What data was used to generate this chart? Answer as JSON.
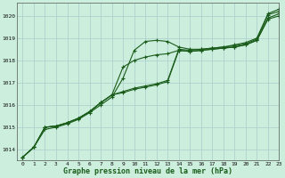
{
  "title": "Graphe pression niveau de la mer (hPa)",
  "bg_color": "#cceedd",
  "grid_color": "#aacccc",
  "line_color": "#1a5c1a",
  "xlim": [
    -0.5,
    23
  ],
  "ylim": [
    1013.5,
    1020.6
  ],
  "yticks": [
    1014,
    1015,
    1016,
    1017,
    1018,
    1019,
    1020
  ],
  "xticks": [
    0,
    1,
    2,
    3,
    4,
    5,
    6,
    7,
    8,
    9,
    10,
    11,
    12,
    13,
    14,
    15,
    16,
    17,
    18,
    19,
    20,
    21,
    22,
    23
  ],
  "series": [
    [
      1013.65,
      1014.1,
      1014.9,
      1015.0,
      1015.15,
      1015.35,
      1015.65,
      1016.0,
      1016.35,
      1017.2,
      1018.45,
      1018.85,
      1018.9,
      1018.85,
      1018.6,
      1018.5,
      1018.5,
      1018.55,
      1018.6,
      1018.7,
      1018.8,
      1019.0,
      1020.1,
      1020.3
    ],
    [
      1013.65,
      1014.1,
      1015.0,
      1015.05,
      1015.2,
      1015.4,
      1015.7,
      1016.1,
      1016.45,
      1016.6,
      1016.75,
      1016.85,
      1016.95,
      1017.1,
      1018.5,
      1018.45,
      1018.5,
      1018.55,
      1018.6,
      1018.65,
      1018.75,
      1018.95,
      1020.05,
      1020.2
    ],
    [
      1013.65,
      1014.1,
      1015.0,
      1015.05,
      1015.2,
      1015.4,
      1015.7,
      1016.1,
      1016.45,
      1016.55,
      1016.7,
      1016.8,
      1016.9,
      1017.05,
      1018.45,
      1018.4,
      1018.45,
      1018.5,
      1018.55,
      1018.6,
      1018.7,
      1018.9,
      1019.9,
      1020.1
    ],
    [
      1013.65,
      1014.1,
      1015.0,
      1015.05,
      1015.2,
      1015.4,
      1015.7,
      1016.1,
      1016.45,
      1017.7,
      1018.0,
      1018.15,
      1018.25,
      1018.3,
      1018.45,
      1018.4,
      1018.45,
      1018.5,
      1018.55,
      1018.6,
      1018.7,
      1018.9,
      1019.85,
      1020.0
    ]
  ]
}
